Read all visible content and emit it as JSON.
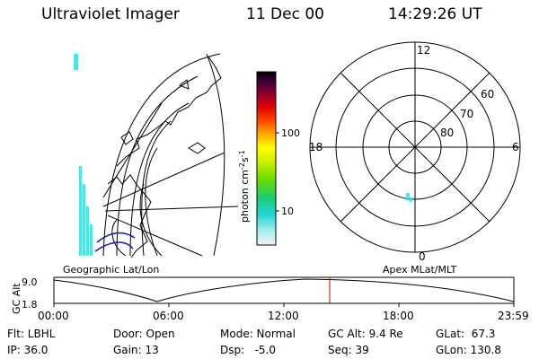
{
  "header": {
    "instrument": "Ultraviolet Imager",
    "date": "11 Dec 00",
    "time": "14:29:26 UT"
  },
  "colorbar": {
    "label_html": "photon cm<tspan baseline-shift='super' font-size='8'>-2</tspan>s<tspan baseline-shift='super' font-size='8'>-1</tspan>",
    "label": "photon cm-2s-1",
    "ticks": [
      "100",
      "10"
    ]
  },
  "geo_map": {
    "caption": "Geographic Lat/Lon"
  },
  "polar_plot": {
    "caption": "Apex MLat/MLT",
    "mlt_labels": {
      "top": "12",
      "left": "18",
      "right": "6",
      "bottom": "0"
    },
    "lat_labels": [
      "60",
      "70",
      "80"
    ]
  },
  "timeline": {
    "ylabel": "GC Alt",
    "y_ticks": [
      "9.0",
      "1.8"
    ],
    "x_ticks": [
      "00:00",
      "06:00",
      "12:00",
      "18:00",
      "23:59"
    ],
    "marker_color": "#cc0000"
  },
  "status": {
    "flt": "Flt: LBHL",
    "ip": "IP: 36.0",
    "door": "Door: Open",
    "gain": "Gain: 13",
    "mode": "Mode: Normal",
    "dsp": "Dsp:   -5.0",
    "gc_alt": "GC Alt: 9.4 Re",
    "seq": "Seq: 39",
    "glat": "GLat:  67.3",
    "glon": "GLon: 130.8"
  }
}
